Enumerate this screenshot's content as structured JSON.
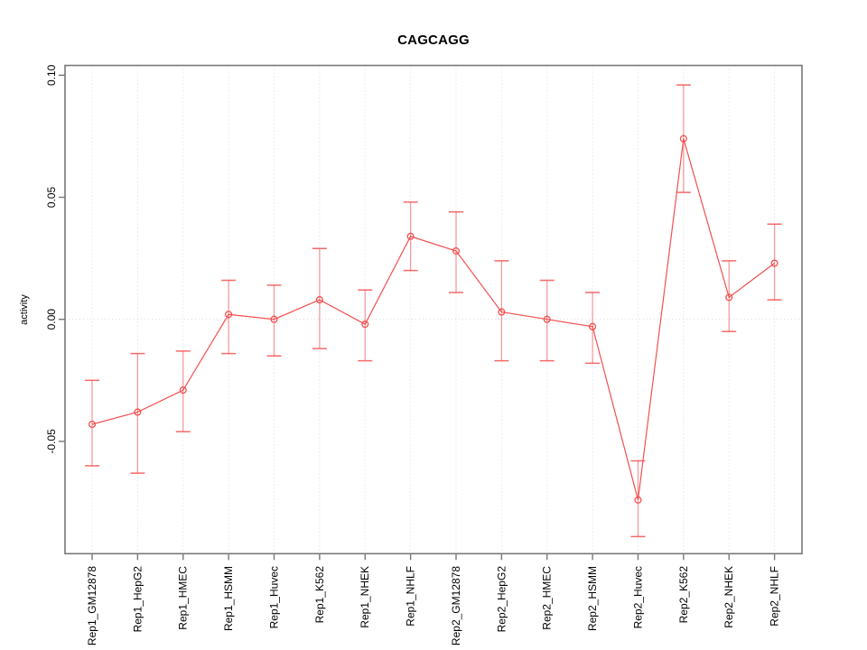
{
  "colors": {
    "series": "#f25050",
    "error_bar": "rgba(242,80,80,0.55)",
    "error_cap": "rgba(242,80,80,0.85)",
    "grid": "#dadada",
    "axis": "#787878",
    "text": "#000000"
  },
  "chart_data": {
    "type": "line",
    "title": "CAGCAGG",
    "xlabel": "",
    "ylabel": "activity",
    "legend": "none",
    "grid": {
      "vertical_per_category": true,
      "horizontal_at_zero": true
    },
    "marker": "open-circle",
    "error_bars": true,
    "ylim": [
      -0.096,
      0.104
    ],
    "ytick_values": [
      0.1,
      0.05,
      0.0,
      -0.05
    ],
    "ytick_labels": [
      "0.10",
      "0.05",
      "0.00",
      "-0.05"
    ],
    "categories": [
      "Rep1_GM12878",
      "Rep1_HepG2",
      "Rep1_HMEC",
      "Rep1_HSMM",
      "Rep1_Huvec",
      "Rep1_K562",
      "Rep1_NHEK",
      "Rep1_NHLF",
      "Rep2_GM12878",
      "Rep2_HepG2",
      "Rep2_HMEC",
      "Rep2_HSMM",
      "Rep2_Huvec",
      "Rep2_K562",
      "Rep2_NHEK",
      "Rep2_NHLF"
    ],
    "series": [
      {
        "name": "activity",
        "values": [
          -0.043,
          -0.038,
          -0.029,
          0.002,
          0.0,
          0.008,
          -0.002,
          0.034,
          0.028,
          0.003,
          0.0,
          -0.003,
          -0.074,
          0.074,
          0.009,
          0.023
        ],
        "upper": [
          -0.025,
          -0.014,
          -0.013,
          0.016,
          0.014,
          0.029,
          0.012,
          0.048,
          0.044,
          0.024,
          0.016,
          0.011,
          -0.058,
          0.096,
          0.024,
          0.039
        ],
        "lower": [
          -0.06,
          -0.063,
          -0.046,
          -0.014,
          -0.015,
          -0.012,
          -0.017,
          0.02,
          0.011,
          -0.017,
          -0.017,
          -0.018,
          -0.089,
          0.052,
          -0.005,
          0.008
        ]
      }
    ]
  }
}
